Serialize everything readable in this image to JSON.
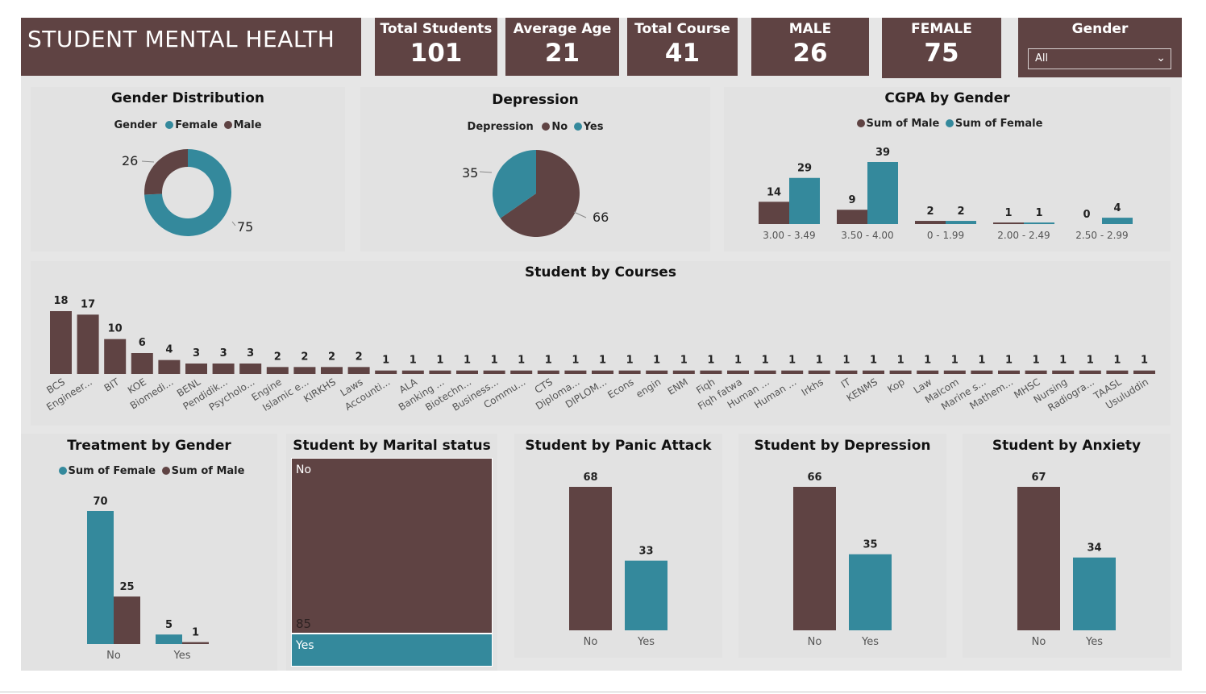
{
  "colors": {
    "brown": "#5f4343",
    "teal": "#34899c",
    "panel": "#e2e2e2"
  },
  "header": {
    "title": "STUDENT MENTAL HEALTH"
  },
  "kpis": [
    {
      "label": "Total Students",
      "value": "101"
    },
    {
      "label": "Average Age",
      "value": "21"
    },
    {
      "label": "Total Course",
      "value": "41"
    },
    {
      "label": "MALE",
      "value": "26"
    },
    {
      "label": "FEMALE",
      "value": "75"
    }
  ],
  "slicer": {
    "label": "Gender",
    "value": "All"
  },
  "gender_dist": {
    "title": "Gender Distribution",
    "legend_title": "Gender",
    "legend": [
      "Female",
      "Male"
    ]
  },
  "depression": {
    "title": "Depression",
    "legend_title": "Depression",
    "legend": [
      "No",
      "Yes"
    ]
  },
  "cgpa": {
    "title": "CGPA by Gender",
    "legend": [
      "Sum of Male",
      "Sum of Female"
    ]
  },
  "courses": {
    "title": "Student by Courses"
  },
  "treatment": {
    "title": "Treatment by Gender",
    "legend": [
      "Sum of Female",
      "Sum of Male"
    ]
  },
  "marital": {
    "title": "Student by Marital status",
    "label_no": "No",
    "label_yes": "Yes",
    "value_no": "85"
  },
  "panic": {
    "title": "Student by Panic Attack"
  },
  "depr2": {
    "title": "Student by Depression"
  },
  "anxiety": {
    "title": "Student by Anxiety"
  },
  "chart_data": [
    {
      "type": "pie",
      "title": "Gender Distribution",
      "donut": true,
      "categories": [
        "Female",
        "Male"
      ],
      "values": [
        75,
        26
      ],
      "legend_title": "Gender",
      "legend_position": "top"
    },
    {
      "type": "pie",
      "title": "Depression",
      "categories": [
        "No",
        "Yes"
      ],
      "values": [
        66,
        35
      ],
      "legend_title": "Depression",
      "legend_position": "top"
    },
    {
      "type": "bar",
      "title": "CGPA by Gender",
      "categories": [
        "3.00 - 3.49",
        "3.50 - 4.00",
        "0 - 1.99",
        "2.00 - 2.49",
        "2.50 - 2.99"
      ],
      "series": [
        {
          "name": "Sum of Male",
          "values": [
            14,
            9,
            2,
            1,
            0
          ]
        },
        {
          "name": "Sum of Female",
          "values": [
            29,
            39,
            2,
            1,
            4
          ]
        }
      ],
      "legend_position": "top"
    },
    {
      "type": "bar",
      "title": "Student by Courses",
      "categories": [
        "BCS",
        "Engineer...",
        "BIT",
        "KOE",
        "Biomedi...",
        "BENL",
        "Pendidik...",
        "Psycholo...",
        "Engine",
        "Islamic e...",
        "KIRKHS",
        "Laws",
        "Accounti...",
        "ALA",
        "Banking ...",
        "Biotechn...",
        "Business...",
        "Commu...",
        "CTS",
        "Diploma...",
        "DIPLOM...",
        "Econs",
        "engin",
        "ENM",
        "Fiqh",
        "Fiqh fatwa",
        "Human ...",
        "Human ...",
        "Irkhs",
        "IT",
        "KENMS",
        "Kop",
        "Law",
        "Malcom",
        "Marine s...",
        "Mathem...",
        "MHSC",
        "Nursing",
        "Radiogra...",
        "TAASL",
        "Usuluddin"
      ],
      "values": [
        18,
        17,
        10,
        6,
        4,
        3,
        3,
        3,
        2,
        2,
        2,
        2,
        1,
        1,
        1,
        1,
        1,
        1,
        1,
        1,
        1,
        1,
        1,
        1,
        1,
        1,
        1,
        1,
        1,
        1,
        1,
        1,
        1,
        1,
        1,
        1,
        1,
        1,
        1,
        1,
        1
      ]
    },
    {
      "type": "bar",
      "title": "Treatment by Gender",
      "categories": [
        "No",
        "Yes"
      ],
      "series": [
        {
          "name": "Sum of Female",
          "values": [
            70,
            5
          ]
        },
        {
          "name": "Sum of Male",
          "values": [
            25,
            1
          ]
        }
      ],
      "legend_position": "top"
    },
    {
      "type": "bar",
      "title": "Student by Marital status",
      "subtype": "treemap",
      "categories": [
        "No",
        "Yes"
      ],
      "values": [
        85,
        16
      ]
    },
    {
      "type": "bar",
      "title": "Student by Panic Attack",
      "categories": [
        "No",
        "Yes"
      ],
      "values": [
        68,
        33
      ]
    },
    {
      "type": "bar",
      "title": "Student by Depression",
      "categories": [
        "No",
        "Yes"
      ],
      "values": [
        66,
        35
      ]
    },
    {
      "type": "bar",
      "title": "Student by Anxiety",
      "categories": [
        "No",
        "Yes"
      ],
      "values": [
        67,
        34
      ]
    }
  ]
}
